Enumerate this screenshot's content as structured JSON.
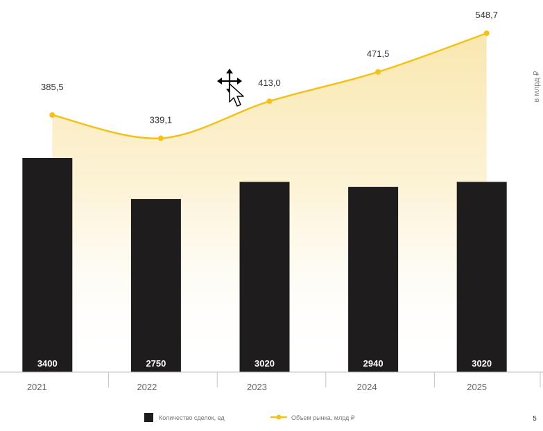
{
  "chart_data": {
    "type": "bar",
    "categories": [
      "2021",
      "2022",
      "2023",
      "2024",
      "2025"
    ],
    "series": [
      {
        "name": "Количество сделок, ед",
        "type": "bar",
        "values": [
          3400,
          2750,
          3020,
          2940,
          3020
        ]
      },
      {
        "name": "Объем рынка, млрд ₽",
        "type": "line",
        "values": [
          385.5,
          339.1,
          413.0,
          471.5,
          548.7
        ],
        "labels": [
          "385,5",
          "339,1",
          "413,0",
          "471,5",
          "548,7"
        ]
      }
    ],
    "bar_labels": [
      "3400",
      "2750",
      "3020",
      "2940",
      "3020"
    ],
    "right_axis_label": "в млрд ₽",
    "legend_position": "bottom",
    "colors": {
      "bar": "#1e1c1c",
      "line": "#f2c21b",
      "area": "#f6d46c"
    }
  },
  "page_number": "5"
}
